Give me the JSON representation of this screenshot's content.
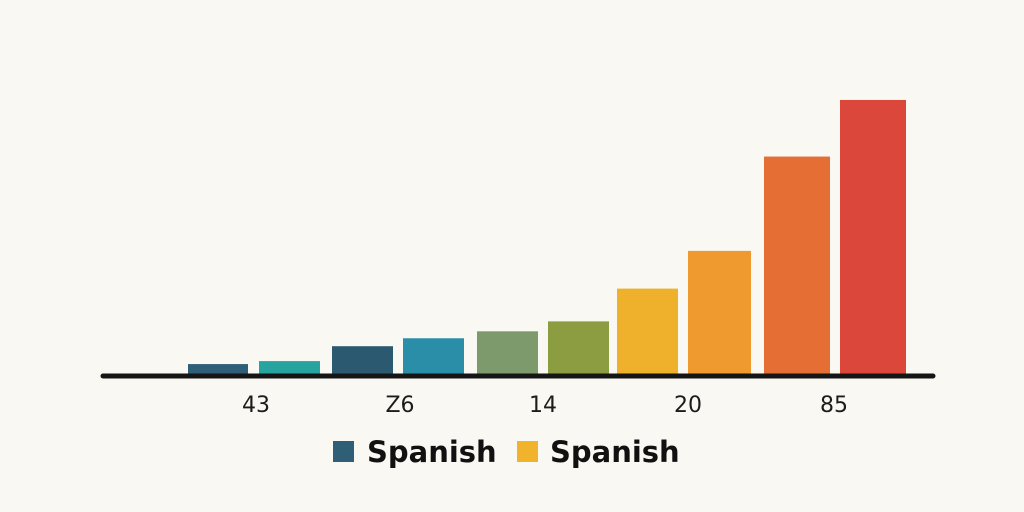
{
  "chart_data": {
    "type": "bar",
    "title": "",
    "xlabel": "",
    "ylabel": "",
    "ylim": [
      0,
      280
    ],
    "grid": false,
    "legend_position": "bottom-center",
    "tick_labels": [
      "43",
      "Z6",
      "14",
      "20",
      "85"
    ],
    "bars": [
      {
        "value": 10,
        "color": "#2f5f78"
      },
      {
        "value": 13,
        "color": "#27a3a0"
      },
      {
        "value": 28,
        "color": "#2b5a70"
      },
      {
        "value": 36,
        "color": "#2a8ea8"
      },
      {
        "value": 43,
        "color": "#7c9a6c"
      },
      {
        "value": 53,
        "color": "#8c9c40"
      },
      {
        "value": 86,
        "color": "#efb12b"
      },
      {
        "value": 124,
        "color": "#ee9a2f"
      },
      {
        "value": 219,
        "color": "#e56e34"
      },
      {
        "value": 276,
        "color": "#dc473b"
      }
    ],
    "legend": [
      {
        "label": "Spanish",
        "color": "#2e5f77"
      },
      {
        "label": "Spanish",
        "color": "#f1b22c"
      }
    ]
  }
}
